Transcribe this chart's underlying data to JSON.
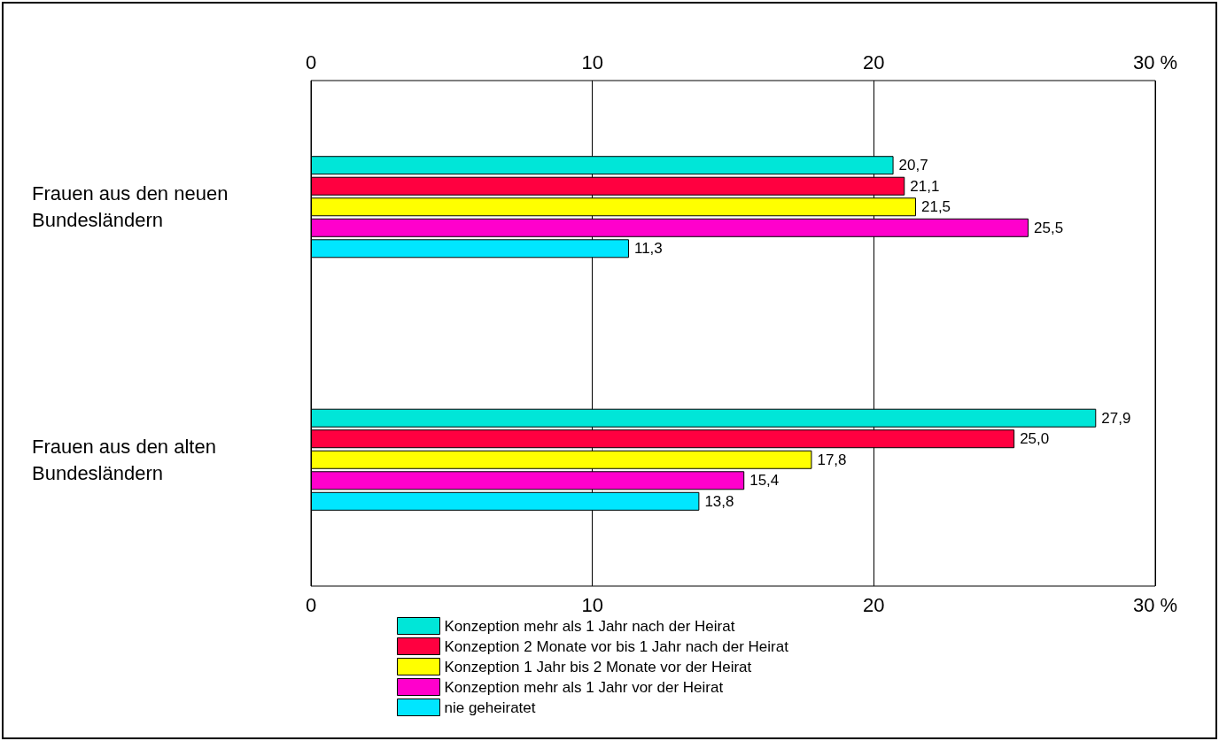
{
  "chart_data": {
    "type": "bar",
    "orientation": "horizontal",
    "categories": [
      "Frauen aus den neuen\nBundesländern",
      "Frauen aus den alten\nBundesländern"
    ],
    "series": [
      {
        "name": "Konzeption mehr als 1 Jahr nach der Heirat",
        "color": "#00e6d8",
        "values": [
          20.7,
          27.9
        ],
        "value_labels": [
          "20,7",
          "27,9"
        ]
      },
      {
        "name": "Konzeption 2 Monate vor bis 1 Jahr nach der Heirat",
        "color": "#ff0040",
        "values": [
          21.1,
          25.0
        ],
        "value_labels": [
          "21,1",
          "25,0"
        ]
      },
      {
        "name": "Konzeption 1 Jahr bis 2 Monate vor der Heirat",
        "color": "#ffff00",
        "values": [
          21.5,
          17.8
        ],
        "value_labels": [
          "21,5",
          "17,8"
        ]
      },
      {
        "name": "Konzeption mehr als 1 Jahr vor der Heirat",
        "color": "#ff00cc",
        "values": [
          25.5,
          15.4
        ],
        "value_labels": [
          "25,5",
          "15,4"
        ]
      },
      {
        "name": "nie geheiratet",
        "color": "#00e6ff",
        "values": [
          11.3,
          13.8
        ],
        "value_labels": [
          "11,3",
          "13,8"
        ]
      }
    ],
    "xlim": [
      0,
      30
    ],
    "xticks": [
      0,
      10,
      20,
      {
        "value": 30,
        "label": "30 %"
      }
    ],
    "x2lim": [
      0,
      30
    ],
    "x2ticks": [
      0,
      10,
      20,
      {
        "value": 30,
        "label": "30 %"
      }
    ],
    "grid": "x",
    "legend": "bottom"
  }
}
